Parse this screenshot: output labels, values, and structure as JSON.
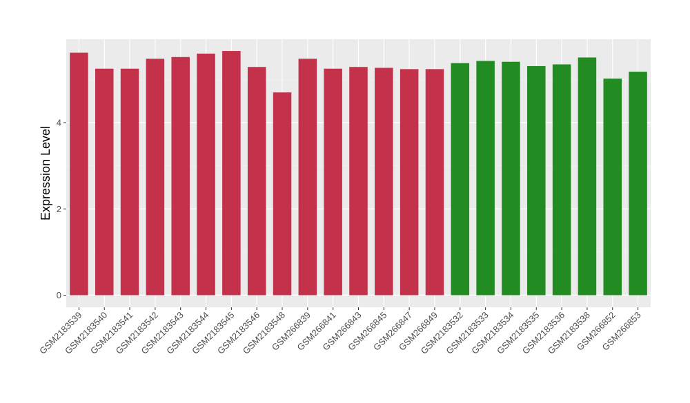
{
  "chart_data": {
    "type": "bar",
    "ylabel": "Expression Level",
    "xlabel": "",
    "ylim": [
      0,
      5.95
    ],
    "yticks": [
      0,
      2,
      4
    ],
    "grid": true,
    "panel_background": "#ebebeb",
    "legend": "none",
    "categories": [
      "GSM2183539",
      "GSM2183540",
      "GSM2183541",
      "GSM2183542",
      "GSM2183543",
      "GSM2183544",
      "GSM2183545",
      "GSM2183546",
      "GSM2183548",
      "GSM266839",
      "GSM266841",
      "GSM266843",
      "GSM266845",
      "GSM266847",
      "GSM266849",
      "GSM2183532",
      "GSM2183533",
      "GSM2183534",
      "GSM2183535",
      "GSM2183536",
      "GSM2183538",
      "GSM266852",
      "GSM266853"
    ],
    "values": [
      5.62,
      5.25,
      5.25,
      5.48,
      5.52,
      5.6,
      5.66,
      5.29,
      4.7,
      5.48,
      5.25,
      5.29,
      5.27,
      5.24,
      5.24,
      5.38,
      5.43,
      5.41,
      5.31,
      5.35,
      5.51,
      5.02,
      5.18
    ],
    "colors": [
      "#c3314a",
      "#c3314a",
      "#c3314a",
      "#c3314a",
      "#c3314a",
      "#c3314a",
      "#c3314a",
      "#c3314a",
      "#c3314a",
      "#c3314a",
      "#c3314a",
      "#c3314a",
      "#c3314a",
      "#c3314a",
      "#c3314a",
      "#228b22",
      "#228b22",
      "#228b22",
      "#228b22",
      "#228b22",
      "#228b22",
      "#228b22",
      "#228b22"
    ]
  }
}
